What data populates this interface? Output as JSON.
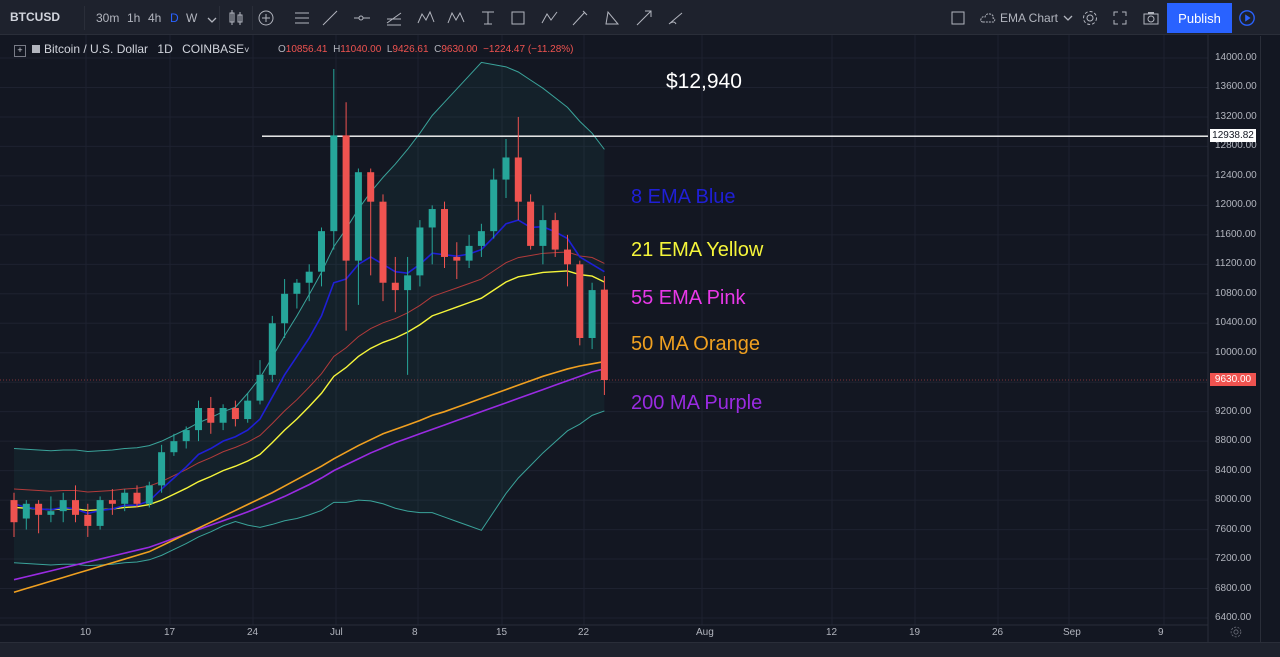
{
  "toolbar": {
    "symbol": "BTCUSD",
    "timeframes": [
      "30m",
      "1h",
      "4h",
      "D",
      "W"
    ],
    "active_timeframe": "D",
    "layout_name": "EMA Chart",
    "publish_label": "Publish"
  },
  "legend": {
    "title": "Bitcoin / U.S. Dollar",
    "interval": "1D",
    "exchange": "COINBASE",
    "open_label": "O",
    "open": "10856.41",
    "high_label": "H",
    "high": "11040.00",
    "low_label": "L",
    "low": "9426.61",
    "close_label": "C",
    "close": "9630.00",
    "change": "−1224.47 (−11.28%)"
  },
  "annotations": {
    "price_title": "$12,940",
    "ema8": "8 EMA Blue",
    "ema21": "21 EMA Yellow",
    "ema55": "55 EMA Pink",
    "ma50": "50 MA Orange",
    "ma200": "200 MA Purple"
  },
  "colors": {
    "ema8": "#1f1fd6",
    "ema21": "#f5f53a",
    "ema55": "#e838e8",
    "ma50": "#f0a020",
    "ma200": "#9a2be2",
    "up": "#26a69a",
    "down": "#ef5350"
  },
  "price_axis": {
    "ticks": [
      "14000.00",
      "13600.00",
      "13200.00",
      "12800.00",
      "12400.00",
      "12000.00",
      "11600.00",
      "11200.00",
      "10800.00",
      "10400.00",
      "10000.00",
      "9600.00",
      "9200.00",
      "8800.00",
      "8400.00",
      "8000.00",
      "7600.00",
      "7200.00",
      "6800.00",
      "6400.00"
    ],
    "hline_label": "12938.82",
    "last_price_label": "9630.00"
  },
  "time_axis": {
    "ticks": [
      "10",
      "17",
      "24",
      "Jul",
      "8",
      "15",
      "22",
      "Aug",
      "12",
      "19",
      "26",
      "Sep",
      "9"
    ]
  },
  "chart_data": {
    "type": "candlestick",
    "interval": "1D",
    "ylim": [
      6400,
      14000
    ],
    "horizontal_line": 12938.82,
    "candles": [
      {
        "o": 8000,
        "h": 8100,
        "l": 7500,
        "c": 7700
      },
      {
        "o": 7750,
        "h": 8000,
        "l": 7600,
        "c": 7950
      },
      {
        "o": 7950,
        "h": 8000,
        "l": 7550,
        "c": 7800
      },
      {
        "o": 7800,
        "h": 8050,
        "l": 7700,
        "c": 7850
      },
      {
        "o": 7850,
        "h": 8100,
        "l": 7700,
        "c": 8000
      },
      {
        "o": 8000,
        "h": 8200,
        "l": 7700,
        "c": 7800
      },
      {
        "o": 7800,
        "h": 7950,
        "l": 7500,
        "c": 7650
      },
      {
        "o": 7650,
        "h": 8050,
        "l": 7600,
        "c": 8000
      },
      {
        "o": 8000,
        "h": 8150,
        "l": 7800,
        "c": 7950
      },
      {
        "o": 7950,
        "h": 8150,
        "l": 7850,
        "c": 8100
      },
      {
        "o": 8100,
        "h": 8200,
        "l": 7900,
        "c": 7950
      },
      {
        "o": 7950,
        "h": 8250,
        "l": 7900,
        "c": 8200
      },
      {
        "o": 8200,
        "h": 8750,
        "l": 8100,
        "c": 8650
      },
      {
        "o": 8650,
        "h": 8900,
        "l": 8600,
        "c": 8800
      },
      {
        "o": 8800,
        "h": 9000,
        "l": 8700,
        "c": 8950
      },
      {
        "o": 8950,
        "h": 9350,
        "l": 8800,
        "c": 9250
      },
      {
        "o": 9250,
        "h": 9400,
        "l": 8900,
        "c": 9050
      },
      {
        "o": 9050,
        "h": 9300,
        "l": 8950,
        "c": 9250
      },
      {
        "o": 9250,
        "h": 9350,
        "l": 9000,
        "c": 9100
      },
      {
        "o": 9100,
        "h": 9450,
        "l": 9050,
        "c": 9350
      },
      {
        "o": 9350,
        "h": 9900,
        "l": 9300,
        "c": 9700
      },
      {
        "o": 9700,
        "h": 10500,
        "l": 9600,
        "c": 10400
      },
      {
        "o": 10400,
        "h": 11000,
        "l": 10200,
        "c": 10800
      },
      {
        "o": 10800,
        "h": 11000,
        "l": 10600,
        "c": 10950
      },
      {
        "o": 10950,
        "h": 11200,
        "l": 10700,
        "c": 11100
      },
      {
        "o": 11100,
        "h": 11700,
        "l": 10900,
        "c": 11650
      },
      {
        "o": 11650,
        "h": 13850,
        "l": 11400,
        "c": 12950
      },
      {
        "o": 12950,
        "h": 13400,
        "l": 10300,
        "c": 11250
      },
      {
        "o": 11250,
        "h": 12500,
        "l": 10650,
        "c": 12450
      },
      {
        "o": 12450,
        "h": 12500,
        "l": 11050,
        "c": 12050
      },
      {
        "o": 12050,
        "h": 12150,
        "l": 10700,
        "c": 10950
      },
      {
        "o": 10950,
        "h": 11300,
        "l": 10550,
        "c": 10850
      },
      {
        "o": 10850,
        "h": 11300,
        "l": 9700,
        "c": 11050
      },
      {
        "o": 11050,
        "h": 11800,
        "l": 10900,
        "c": 11700
      },
      {
        "o": 11700,
        "h": 12000,
        "l": 11200,
        "c": 11950
      },
      {
        "o": 11950,
        "h": 12050,
        "l": 11150,
        "c": 11300
      },
      {
        "o": 11300,
        "h": 11500,
        "l": 11000,
        "c": 11250
      },
      {
        "o": 11250,
        "h": 11600,
        "l": 11150,
        "c": 11450
      },
      {
        "o": 11450,
        "h": 11750,
        "l": 11300,
        "c": 11650
      },
      {
        "o": 11650,
        "h": 12500,
        "l": 11550,
        "c": 12350
      },
      {
        "o": 12350,
        "h": 12900,
        "l": 12100,
        "c": 12650
      },
      {
        "o": 12650,
        "h": 13200,
        "l": 11800,
        "c": 12050
      },
      {
        "o": 12050,
        "h": 12150,
        "l": 11400,
        "c": 11450
      },
      {
        "o": 11450,
        "h": 12000,
        "l": 11200,
        "c": 11800
      },
      {
        "o": 11800,
        "h": 11900,
        "l": 11300,
        "c": 11400
      },
      {
        "o": 11400,
        "h": 11600,
        "l": 10900,
        "c": 11200
      },
      {
        "o": 11200,
        "h": 11250,
        "l": 10100,
        "c": 10200
      },
      {
        "o": 10200,
        "h": 10950,
        "l": 10050,
        "c": 10850
      },
      {
        "o": 10856.41,
        "h": 11040,
        "l": 9426.61,
        "c": 9630
      }
    ],
    "ema8": [
      7950,
      7900,
      7880,
      7870,
      7900,
      7880,
      7820,
      7860,
      7880,
      7930,
      7930,
      7990,
      8150,
      8300,
      8450,
      8620,
      8700,
      8800,
      8860,
      8950,
      9100,
      9400,
      9700,
      9950,
      10200,
      10500,
      10950,
      11000,
      11200,
      11300,
      11200,
      11100,
      11080,
      11200,
      11350,
      11330,
      11310,
      11340,
      11400,
      11570,
      11750,
      11800,
      11700,
      11710,
      11640,
      11550,
      11300,
      11200,
      11100
    ],
    "ema21": [
      7900,
      7890,
      7880,
      7870,
      7880,
      7880,
      7860,
      7870,
      7880,
      7900,
      7910,
      7940,
      8000,
      8080,
      8160,
      8250,
      8320,
      8400,
      8460,
      8530,
      8620,
      8780,
      8950,
      9100,
      9270,
      9450,
      9680,
      9800,
      9950,
      10060,
      10140,
      10200,
      10280,
      10380,
      10500,
      10560,
      10620,
      10680,
      10740,
      10850,
      10960,
      11030,
      11060,
      11090,
      11100,
      11110,
      11060,
      11040,
      10960
    ],
    "ma50": [
      6750,
      6800,
      6850,
      6900,
      6950,
      7000,
      7050,
      7100,
      7150,
      7200,
      7250,
      7300,
      7380,
      7460,
      7540,
      7620,
      7700,
      7780,
      7860,
      7940,
      8020,
      8100,
      8190,
      8280,
      8370,
      8460,
      8560,
      8650,
      8740,
      8820,
      8900,
      8960,
      9020,
      9080,
      9150,
      9200,
      9260,
      9320,
      9380,
      9440,
      9500,
      9560,
      9620,
      9680,
      9730,
      9780,
      9820,
      9850,
      9880
    ],
    "ma200": [
      6920,
      6960,
      7000,
      7040,
      7080,
      7120,
      7160,
      7200,
      7240,
      7280,
      7320,
      7360,
      7420,
      7480,
      7540,
      7600,
      7660,
      7720,
      7780,
      7840,
      7910,
      7980,
      8050,
      8130,
      8210,
      8300,
      8400,
      8480,
      8560,
      8640,
      8710,
      8780,
      8840,
      8900,
      8960,
      9020,
      9080,
      9140,
      9200,
      9260,
      9320,
      9380,
      9440,
      9500,
      9560,
      9620,
      9680,
      9740,
      9780
    ]
  }
}
